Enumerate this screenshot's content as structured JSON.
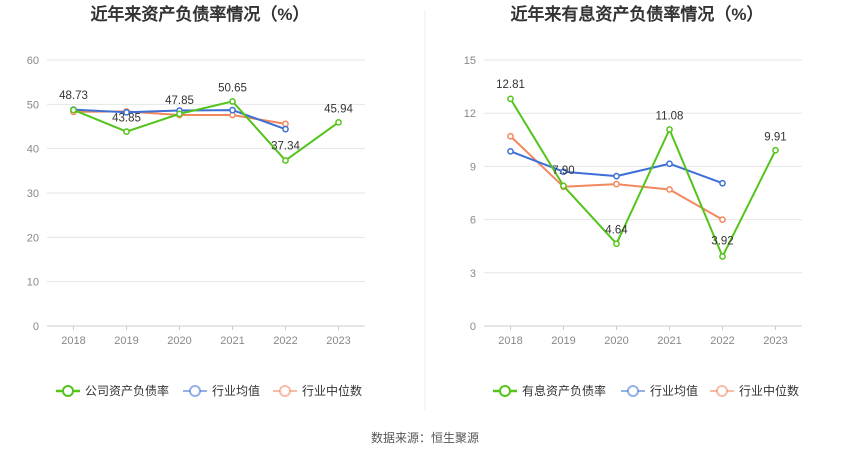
{
  "source_text": "数据来源：恒生聚源",
  "chart_data": [
    {
      "type": "line",
      "title": "近年来资产负债率情况（%）",
      "categories": [
        "2018",
        "2019",
        "2020",
        "2021",
        "2022",
        "2023"
      ],
      "ylim": [
        0,
        60
      ],
      "yticks": [
        0,
        10,
        20,
        30,
        40,
        50,
        60
      ],
      "grid": true,
      "legend_position": "bottom",
      "series": [
        {
          "name": "公司资产负债率",
          "color": "#52c41a",
          "values": [
            48.73,
            43.85,
            47.85,
            50.65,
            37.34,
            45.94
          ],
          "labels": [
            "48.73",
            "43.85",
            "47.85",
            "50.65",
            "37.34",
            "45.94"
          ]
        },
        {
          "name": "行业均值",
          "color": "#3d6fd6",
          "values": [
            48.8,
            48.2,
            48.6,
            48.7,
            44.4,
            null
          ]
        },
        {
          "name": "行业中位数",
          "color": "#f3875e",
          "values": [
            48.3,
            48.4,
            47.6,
            47.6,
            45.6,
            null
          ]
        }
      ]
    },
    {
      "type": "line",
      "title": "近年来有息资产负债率情况（%）",
      "categories": [
        "2018",
        "2019",
        "2020",
        "2021",
        "2022",
        "2023"
      ],
      "ylim": [
        0,
        15
      ],
      "yticks": [
        0,
        3,
        6,
        9,
        12,
        15
      ],
      "grid": true,
      "legend_position": "bottom",
      "series": [
        {
          "name": "有息资产负债率",
          "color": "#52c41a",
          "values": [
            12.81,
            7.9,
            4.64,
            11.08,
            3.92,
            9.91
          ],
          "labels": [
            "12.81",
            "7.90",
            "4.64",
            "11.08",
            "3.92",
            "9.91"
          ]
        },
        {
          "name": "行业均值",
          "color": "#3d6fd6",
          "values": [
            9.85,
            8.7,
            8.45,
            9.15,
            8.05,
            null
          ]
        },
        {
          "name": "行业中位数",
          "color": "#f3875e",
          "values": [
            10.7,
            7.85,
            8.0,
            7.7,
            6.0,
            null
          ]
        }
      ]
    }
  ]
}
